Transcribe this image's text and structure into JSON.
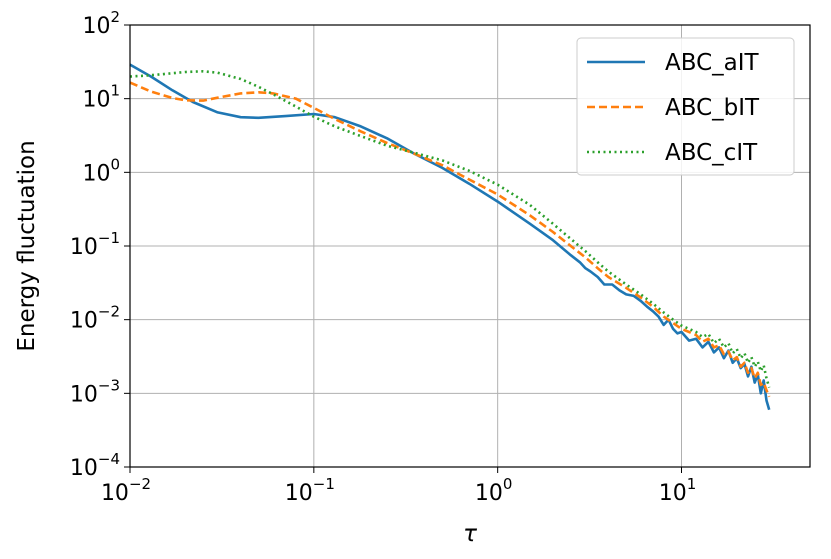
{
  "chart_data": {
    "type": "line",
    "xscale": "log",
    "yscale": "log",
    "xlim": [
      0.01,
      50
    ],
    "ylim": [
      0.0001,
      100
    ],
    "xlabel": "τ",
    "ylabel": "Energy fluctuation",
    "grid": true,
    "legend_position": "top-right",
    "x_ticks": [
      {
        "base": "10",
        "exp": "−2",
        "value": 0.01
      },
      {
        "base": "10",
        "exp": "−1",
        "value": 0.1
      },
      {
        "base": "10",
        "exp": "0",
        "value": 1
      },
      {
        "base": "10",
        "exp": "1",
        "value": 10
      }
    ],
    "y_ticks": [
      {
        "base": "10",
        "exp": "−4",
        "value": 0.0001
      },
      {
        "base": "10",
        "exp": "−3",
        "value": 0.001
      },
      {
        "base": "10",
        "exp": "−2",
        "value": 0.01
      },
      {
        "base": "10",
        "exp": "−1",
        "value": 0.1
      },
      {
        "base": "10",
        "exp": "0",
        "value": 1
      },
      {
        "base": "10",
        "exp": "1",
        "value": 10
      },
      {
        "base": "10",
        "exp": "2",
        "value": 100
      }
    ],
    "series": [
      {
        "name": "ABC_aIT",
        "color": "#1f77b4",
        "style": "solid",
        "points": [
          [
            0.01,
            29
          ],
          [
            0.013,
            20
          ],
          [
            0.017,
            13
          ],
          [
            0.022,
            9
          ],
          [
            0.03,
            6.5
          ],
          [
            0.04,
            5.6
          ],
          [
            0.05,
            5.5
          ],
          [
            0.07,
            5.8
          ],
          [
            0.1,
            6.2
          ],
          [
            0.13,
            5.6
          ],
          [
            0.18,
            4.2
          ],
          [
            0.25,
            2.9
          ],
          [
            0.35,
            1.8
          ],
          [
            0.5,
            1.15
          ],
          [
            0.7,
            0.7
          ],
          [
            1,
            0.4
          ],
          [
            1.5,
            0.2
          ],
          [
            2,
            0.12
          ],
          [
            2.5,
            0.075
          ],
          [
            2.8,
            0.06
          ],
          [
            3,
            0.05
          ],
          [
            3.2,
            0.045
          ],
          [
            3.5,
            0.038
          ],
          [
            3.8,
            0.03
          ],
          [
            4.2,
            0.03
          ],
          [
            4.6,
            0.025
          ],
          [
            5,
            0.022
          ],
          [
            5.5,
            0.021
          ],
          [
            6,
            0.018
          ],
          [
            6.5,
            0.015
          ],
          [
            7,
            0.013
          ],
          [
            7.5,
            0.011
          ],
          [
            8,
            0.0085
          ],
          [
            8.5,
            0.01
          ],
          [
            9,
            0.0075
          ],
          [
            9.5,
            0.0065
          ],
          [
            10,
            0.0068
          ],
          [
            11,
            0.0052
          ],
          [
            12,
            0.0055
          ],
          [
            13,
            0.0042
          ],
          [
            14,
            0.005
          ],
          [
            15,
            0.0036
          ],
          [
            16,
            0.0042
          ],
          [
            17,
            0.003
          ],
          [
            18,
            0.0038
          ],
          [
            19,
            0.0026
          ],
          [
            20,
            0.003
          ],
          [
            21,
            0.0022
          ],
          [
            22,
            0.0025
          ],
          [
            23,
            0.0017
          ],
          [
            24,
            0.0023
          ],
          [
            25,
            0.0014
          ],
          [
            26,
            0.0018
          ],
          [
            27,
            0.001
          ],
          [
            28,
            0.0015
          ],
          [
            29,
            0.0008
          ],
          [
            30,
            0.0006
          ]
        ]
      },
      {
        "name": "ABC_bIT",
        "color": "#ff7f0e",
        "style": "dashed",
        "points": [
          [
            0.01,
            16.5
          ],
          [
            0.013,
            12.5
          ],
          [
            0.017,
            10.2
          ],
          [
            0.02,
            9.5
          ],
          [
            0.025,
            9.4
          ],
          [
            0.03,
            10.3
          ],
          [
            0.04,
            11.8
          ],
          [
            0.05,
            12.2
          ],
          [
            0.06,
            11.8
          ],
          [
            0.08,
            10
          ],
          [
            0.1,
            7.5
          ],
          [
            0.13,
            5.3
          ],
          [
            0.18,
            3.6
          ],
          [
            0.25,
            2.5
          ],
          [
            0.35,
            1.8
          ],
          [
            0.5,
            1.25
          ],
          [
            0.7,
            0.8
          ],
          [
            1,
            0.5
          ],
          [
            1.5,
            0.26
          ],
          [
            2,
            0.155
          ],
          [
            2.5,
            0.1
          ],
          [
            3,
            0.07
          ],
          [
            3.5,
            0.05
          ],
          [
            4,
            0.038
          ],
          [
            5,
            0.027
          ],
          [
            6,
            0.02
          ],
          [
            7,
            0.015
          ],
          [
            8,
            0.011
          ],
          [
            9,
            0.009
          ],
          [
            10,
            0.0075
          ],
          [
            11,
            0.0068
          ],
          [
            12,
            0.0062
          ],
          [
            13,
            0.005
          ],
          [
            14,
            0.0055
          ],
          [
            15,
            0.0042
          ],
          [
            16,
            0.0045
          ],
          [
            17,
            0.0034
          ],
          [
            18,
            0.0037
          ],
          [
            19,
            0.0028
          ],
          [
            20,
            0.0031
          ],
          [
            21,
            0.0023
          ],
          [
            22,
            0.0026
          ],
          [
            23,
            0.0019
          ],
          [
            24,
            0.0022
          ],
          [
            25,
            0.0016
          ],
          [
            26,
            0.0019
          ],
          [
            27,
            0.0013
          ],
          [
            28,
            0.0014
          ],
          [
            29,
            0.0011
          ],
          [
            30,
            0.0009
          ]
        ]
      },
      {
        "name": "ABC_cIT",
        "color": "#2ca02c",
        "style": "dotted",
        "points": [
          [
            0.01,
            20
          ],
          [
            0.012,
            20.5
          ],
          [
            0.015,
            21.5
          ],
          [
            0.02,
            23
          ],
          [
            0.025,
            23.5
          ],
          [
            0.03,
            22.5
          ],
          [
            0.04,
            18.5
          ],
          [
            0.05,
            14.5
          ],
          [
            0.06,
            11.5
          ],
          [
            0.08,
            7.8
          ],
          [
            0.1,
            5.7
          ],
          [
            0.13,
            4.2
          ],
          [
            0.18,
            3.1
          ],
          [
            0.25,
            2.3
          ],
          [
            0.35,
            1.85
          ],
          [
            0.5,
            1.45
          ],
          [
            0.7,
            1.05
          ],
          [
            1,
            0.68
          ],
          [
            1.5,
            0.36
          ],
          [
            2,
            0.2
          ],
          [
            2.5,
            0.125
          ],
          [
            3,
            0.085
          ],
          [
            3.5,
            0.06
          ],
          [
            4,
            0.045
          ],
          [
            5,
            0.03
          ],
          [
            6,
            0.022
          ],
          [
            7,
            0.0165
          ],
          [
            8,
            0.0125
          ],
          [
            9,
            0.01
          ],
          [
            10,
            0.0083
          ],
          [
            11,
            0.0075
          ],
          [
            12,
            0.0068
          ],
          [
            13,
            0.0058
          ],
          [
            14,
            0.0064
          ],
          [
            15,
            0.0048
          ],
          [
            16,
            0.0055
          ],
          [
            17,
            0.0042
          ],
          [
            18,
            0.0048
          ],
          [
            19,
            0.0035
          ],
          [
            20,
            0.004
          ],
          [
            21,
            0.003
          ],
          [
            22,
            0.0035
          ],
          [
            23,
            0.0026
          ],
          [
            24,
            0.0031
          ],
          [
            25,
            0.0023
          ],
          [
            26,
            0.0027
          ],
          [
            27,
            0.002
          ],
          [
            28,
            0.0024
          ],
          [
            29,
            0.0016
          ],
          [
            30,
            0.0012
          ]
        ]
      }
    ]
  }
}
